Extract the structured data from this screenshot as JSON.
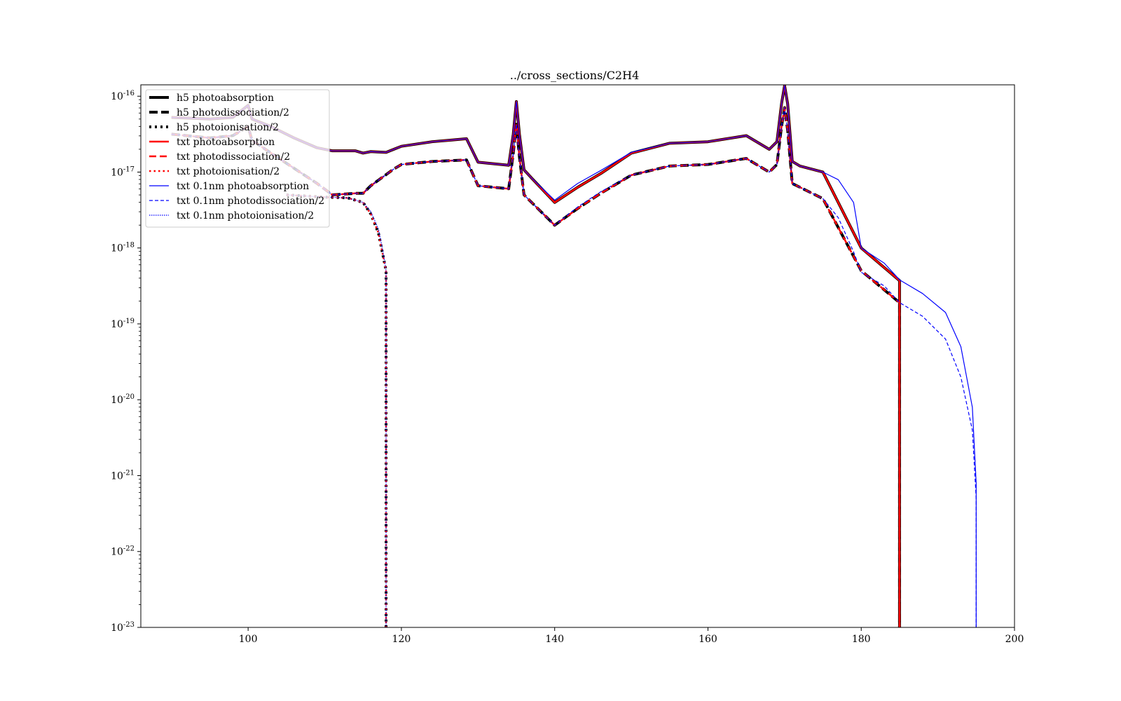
{
  "chart_data": {
    "type": "line",
    "title": "../cross_sections/C2H4",
    "xlabel": "",
    "ylabel": "",
    "xlim": [
      86,
      200
    ],
    "ylim_log10": [
      -23,
      -15.85
    ],
    "y_scale": "log",
    "grid": false,
    "legend_position": "top-left",
    "x_ticks": [
      {
        "value": 100,
        "label": "100"
      },
      {
        "value": 120,
        "label": "120"
      },
      {
        "value": 140,
        "label": "140"
      },
      {
        "value": 160,
        "label": "160"
      },
      {
        "value": 180,
        "label": "180"
      },
      {
        "value": 200,
        "label": "200"
      }
    ],
    "y_ticks": [
      {
        "exp": -16,
        "label_base": "10",
        "label_exp": "-16"
      },
      {
        "exp": -17,
        "label_base": "10",
        "label_exp": "-17"
      },
      {
        "exp": -18,
        "label_base": "10",
        "label_exp": "-18"
      },
      {
        "exp": -19,
        "label_base": "10",
        "label_exp": "-19"
      },
      {
        "exp": -20,
        "label_base": "10",
        "label_exp": "-20"
      },
      {
        "exp": -21,
        "label_base": "10",
        "label_exp": "-21"
      },
      {
        "exp": -22,
        "label_base": "10",
        "label_exp": "-22"
      },
      {
        "exp": -23,
        "label_base": "10",
        "label_exp": "-23"
      }
    ],
    "series_points_log10": {
      "absorption": [
        [
          90,
          -16.28
        ],
        [
          95,
          -16.3
        ],
        [
          98,
          -16.28
        ],
        [
          100,
          -16.12
        ],
        [
          100.5,
          -16.3
        ],
        [
          103,
          -16.4
        ],
        [
          106,
          -16.55
        ],
        [
          109,
          -16.68
        ],
        [
          111,
          -16.72
        ],
        [
          114,
          -16.72
        ],
        [
          115,
          -16.75
        ],
        [
          116,
          -16.73
        ],
        [
          118,
          -16.74
        ],
        [
          119,
          -16.7
        ],
        [
          120,
          -16.66
        ],
        [
          124,
          -16.6
        ],
        [
          128.5,
          -16.56
        ],
        [
          130,
          -16.87
        ],
        [
          134,
          -16.91
        ],
        [
          134.6,
          -16.5
        ],
        [
          135,
          -16.07
        ],
        [
          135.4,
          -16.5
        ],
        [
          136,
          -16.97
        ],
        [
          137,
          -17.08
        ],
        [
          140,
          -17.4
        ],
        [
          143,
          -17.2
        ],
        [
          146,
          -17.02
        ],
        [
          150,
          -16.75
        ],
        [
          155,
          -16.62
        ],
        [
          160,
          -16.6
        ],
        [
          165,
          -16.52
        ],
        [
          168,
          -16.7
        ],
        [
          169,
          -16.6
        ],
        [
          169.6,
          -16.1
        ],
        [
          170,
          -15.86
        ],
        [
          170.4,
          -16.1
        ],
        [
          171,
          -16.86
        ],
        [
          172,
          -16.92
        ],
        [
          175,
          -17.0
        ],
        [
          180,
          -18.0
        ],
        [
          185,
          -18.43
        ],
        [
          185,
          -23
        ]
      ],
      "dissociation": [
        [
          90,
          -16.5
        ],
        [
          95,
          -16.55
        ],
        [
          98,
          -16.52
        ],
        [
          100,
          -16.4
        ],
        [
          100.5,
          -16.58
        ],
        [
          103,
          -16.75
        ],
        [
          106,
          -16.95
        ],
        [
          109,
          -17.15
        ],
        [
          111,
          -17.3
        ],
        [
          114,
          -17.28
        ],
        [
          115,
          -17.28
        ],
        [
          116,
          -17.18
        ],
        [
          119,
          -16.96
        ],
        [
          120,
          -16.9
        ],
        [
          124,
          -16.86
        ],
        [
          128.5,
          -16.84
        ],
        [
          130,
          -17.18
        ],
        [
          134,
          -17.22
        ],
        [
          134.6,
          -16.75
        ],
        [
          135,
          -16.37
        ],
        [
          135.4,
          -16.8
        ],
        [
          136,
          -17.3
        ],
        [
          137,
          -17.4
        ],
        [
          140,
          -17.7
        ],
        [
          143,
          -17.48
        ],
        [
          146,
          -17.28
        ],
        [
          150,
          -17.04
        ],
        [
          155,
          -16.92
        ],
        [
          160,
          -16.9
        ],
        [
          165,
          -16.82
        ],
        [
          168,
          -17.0
        ],
        [
          169,
          -16.9
        ],
        [
          169.6,
          -16.4
        ],
        [
          170,
          -16.15
        ],
        [
          170.4,
          -16.45
        ],
        [
          171,
          -17.15
        ],
        [
          172,
          -17.2
        ],
        [
          175,
          -17.35
        ],
        [
          180,
          -18.3
        ],
        [
          185,
          -18.72
        ],
        [
          185,
          -23
        ]
      ],
      "ionisation": [
        [
          105,
          -17.3
        ],
        [
          110,
          -17.33
        ],
        [
          113,
          -17.34
        ],
        [
          115,
          -17.4
        ],
        [
          116,
          -17.55
        ],
        [
          117,
          -17.8
        ],
        [
          117.6,
          -18.1
        ],
        [
          118,
          -18.3
        ],
        [
          118,
          -23
        ]
      ],
      "fine_absorption": [
        [
          90,
          -16.28
        ],
        [
          95,
          -16.3
        ],
        [
          98,
          -16.28
        ],
        [
          100,
          -16.12
        ],
        [
          100.5,
          -16.3
        ],
        [
          103,
          -16.4
        ],
        [
          106,
          -16.55
        ],
        [
          109,
          -16.68
        ],
        [
          111,
          -16.72
        ],
        [
          114,
          -16.72
        ],
        [
          115,
          -16.75
        ],
        [
          116,
          -16.73
        ],
        [
          118,
          -16.74
        ],
        [
          119,
          -16.7
        ],
        [
          120,
          -16.66
        ],
        [
          124,
          -16.6
        ],
        [
          128.5,
          -16.56
        ],
        [
          130,
          -16.87
        ],
        [
          134,
          -16.91
        ],
        [
          134.6,
          -16.5
        ],
        [
          135,
          -16.07
        ],
        [
          135.4,
          -16.5
        ],
        [
          136,
          -16.97
        ],
        [
          137,
          -17.08
        ],
        [
          140,
          -17.37
        ],
        [
          143,
          -17.15
        ],
        [
          146,
          -16.98
        ],
        [
          150,
          -16.74
        ],
        [
          155,
          -16.62
        ],
        [
          160,
          -16.6
        ],
        [
          165,
          -16.52
        ],
        [
          168,
          -16.7
        ],
        [
          169,
          -16.6
        ],
        [
          169.6,
          -16.1
        ],
        [
          170,
          -15.86
        ],
        [
          170.4,
          -16.1
        ],
        [
          171,
          -16.86
        ],
        [
          172,
          -16.92
        ],
        [
          175,
          -17.0
        ],
        [
          177,
          -17.1
        ],
        [
          179,
          -17.4
        ],
        [
          180,
          -18.0
        ],
        [
          183,
          -18.2
        ],
        [
          185,
          -18.42
        ],
        [
          188,
          -18.6
        ],
        [
          191,
          -18.85
        ],
        [
          193,
          -19.3
        ],
        [
          194.5,
          -20.1
        ],
        [
          195,
          -21.1
        ],
        [
          195,
          -23
        ]
      ],
      "fine_dissociation": [
        [
          90,
          -16.5
        ],
        [
          95,
          -16.55
        ],
        [
          98,
          -16.52
        ],
        [
          100,
          -16.4
        ],
        [
          100.5,
          -16.58
        ],
        [
          103,
          -16.75
        ],
        [
          106,
          -16.95
        ],
        [
          109,
          -17.15
        ],
        [
          111,
          -17.3
        ],
        [
          114,
          -17.28
        ],
        [
          115,
          -17.28
        ],
        [
          116,
          -17.18
        ],
        [
          119,
          -16.96
        ],
        [
          120,
          -16.9
        ],
        [
          124,
          -16.86
        ],
        [
          128.5,
          -16.84
        ],
        [
          130,
          -17.18
        ],
        [
          134,
          -17.22
        ],
        [
          134.6,
          -16.75
        ],
        [
          135,
          -16.37
        ],
        [
          135.4,
          -16.8
        ],
        [
          136,
          -17.3
        ],
        [
          137,
          -17.4
        ],
        [
          140,
          -17.7
        ],
        [
          143,
          -17.46
        ],
        [
          146,
          -17.26
        ],
        [
          150,
          -17.04
        ],
        [
          155,
          -16.92
        ],
        [
          160,
          -16.9
        ],
        [
          165,
          -16.82
        ],
        [
          168,
          -17.0
        ],
        [
          169,
          -16.9
        ],
        [
          169.6,
          -16.4
        ],
        [
          170,
          -16.15
        ],
        [
          170.4,
          -16.45
        ],
        [
          171,
          -17.15
        ],
        [
          172,
          -17.2
        ],
        [
          175,
          -17.35
        ],
        [
          177,
          -17.6
        ],
        [
          179,
          -18.05
        ],
        [
          180,
          -18.32
        ],
        [
          183,
          -18.5
        ],
        [
          185,
          -18.72
        ],
        [
          188,
          -18.9
        ],
        [
          191,
          -19.2
        ],
        [
          193,
          -19.7
        ],
        [
          194.5,
          -20.4
        ],
        [
          195,
          -21.3
        ],
        [
          195,
          -23
        ]
      ],
      "fine_ionisation": [
        [
          105,
          -17.3
        ],
        [
          110,
          -17.33
        ],
        [
          113,
          -17.34
        ],
        [
          115,
          -17.4
        ],
        [
          116,
          -17.52
        ],
        [
          117,
          -17.75
        ],
        [
          117.6,
          -18.05
        ],
        [
          118,
          -18.3
        ],
        [
          118,
          -23
        ]
      ]
    },
    "series": [
      {
        "name": "h5 photoabsorption",
        "points": "absorption",
        "color": "#000000",
        "width": 4,
        "dash": ""
      },
      {
        "name": "h5 photodissociation/2",
        "points": "dissociation",
        "color": "#000000",
        "width": 4,
        "dash": "12,5"
      },
      {
        "name": "h5 photoionisation/2",
        "points": "ionisation",
        "color": "#000000",
        "width": 4,
        "dash": "3,5"
      },
      {
        "name": "txt photoabsorption",
        "points": "absorption",
        "color": "#ff0000",
        "width": 2.5,
        "dash": ""
      },
      {
        "name": "txt photodissociation/2",
        "points": "dissociation",
        "color": "#ff0000",
        "width": 2.5,
        "dash": "10,5"
      },
      {
        "name": "txt photoionisation/2",
        "points": "ionisation",
        "color": "#ff0000",
        "width": 2.5,
        "dash": "2.5,4"
      },
      {
        "name": "txt 0.1nm photoabsorption",
        "points": "fine_absorption",
        "color": "#0000ff",
        "width": 1.2,
        "dash": ""
      },
      {
        "name": "txt 0.1nm photodissociation/2",
        "points": "fine_dissociation",
        "color": "#0000ff",
        "width": 1.2,
        "dash": "5,3"
      },
      {
        "name": "txt 0.1nm photoionisation/2",
        "points": "fine_ionisation",
        "color": "#0000ff",
        "width": 1.2,
        "dash": "1.5,1.5"
      }
    ]
  }
}
